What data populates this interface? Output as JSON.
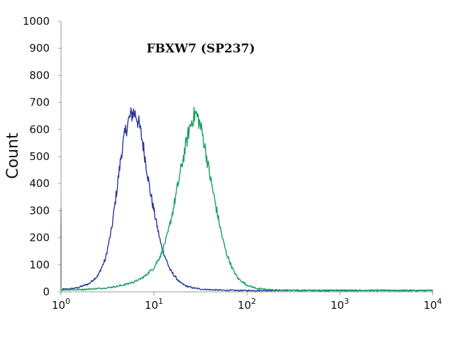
{
  "chart_data": {
    "type": "line",
    "title": "FBXW7 (SP237)",
    "xlabel": "",
    "ylabel": "Count",
    "x_scale": "log",
    "xlim": [
      1,
      10000
    ],
    "ylim": [
      0,
      1000
    ],
    "x_ticks": [
      {
        "value": 1,
        "base": "10",
        "exp": "0"
      },
      {
        "value": 10,
        "base": "10",
        "exp": "1"
      },
      {
        "value": 100,
        "base": "10",
        "exp": "2"
      },
      {
        "value": 1000,
        "base": "10",
        "exp": "3"
      },
      {
        "value": 10000,
        "base": "10",
        "exp": "4"
      }
    ],
    "y_ticks": [
      "0",
      "100",
      "200",
      "300",
      "400",
      "500",
      "600",
      "700",
      "800",
      "900",
      "1000"
    ],
    "grid": false,
    "legend": "none",
    "series": [
      {
        "color": "#2a3a9a",
        "x": [
          1,
          1.01,
          1.05,
          1.2,
          1.5,
          2,
          2.5,
          3,
          3.5,
          4,
          4.5,
          5,
          5.5,
          6,
          6.5,
          7,
          7.5,
          8,
          8.5,
          9,
          10,
          11,
          12,
          13.5,
          15,
          17,
          19,
          22,
          26,
          32,
          40,
          55,
          80,
          120,
          200,
          10000
        ],
        "y": [
          310,
          5,
          10,
          10,
          15,
          30,
          60,
          120,
          230,
          380,
          520,
          600,
          645,
          665,
          650,
          610,
          560,
          500,
          440,
          380,
          300,
          230,
          170,
          120,
          80,
          55,
          35,
          22,
          15,
          10,
          8,
          6,
          5,
          5,
          5,
          5
        ]
      },
      {
        "color": "#1aa060",
        "x": [
          1,
          1.01,
          1.05,
          1.5,
          2,
          3,
          4,
          5,
          6,
          7,
          8,
          10,
          12,
          14,
          16,
          18,
          20,
          22,
          24,
          26,
          28,
          30,
          33,
          36,
          40,
          45,
          50,
          55,
          60,
          70,
          80,
          100,
          130,
          180,
          250,
          10000
        ],
        "y": [
          255,
          5,
          8,
          8,
          10,
          14,
          20,
          28,
          36,
          46,
          58,
          90,
          140,
          210,
          300,
          390,
          470,
          540,
          600,
          640,
          660,
          640,
          590,
          520,
          430,
          340,
          260,
          195,
          145,
          85,
          50,
          25,
          12,
          8,
          6,
          5
        ]
      }
    ]
  }
}
